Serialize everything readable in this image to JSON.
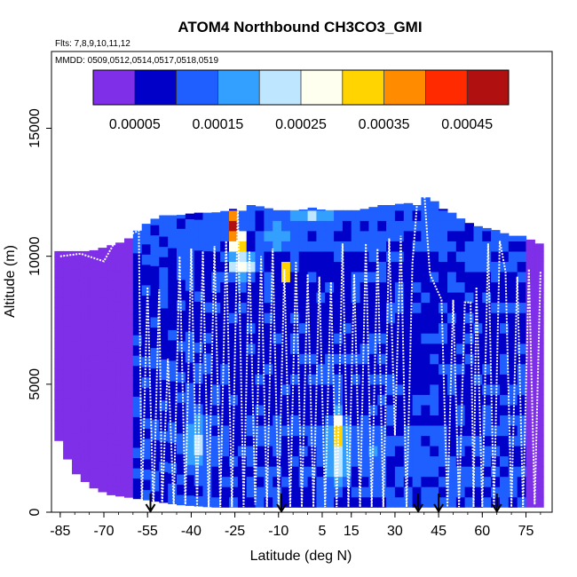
{
  "chart_data": {
    "type": "heatmap",
    "title": "ATOM4 Northbound CH3CO3_GMI",
    "flights_note": "Flts: 7,8,9,10,11,12",
    "dates_note": "MMDD: 0509,0512,0514,0517,0518,0519",
    "xlabel": "Latitude (deg N)",
    "ylabel": "Altitude (m)",
    "xlim": [
      -88,
      84
    ],
    "ylim": [
      0,
      18000
    ],
    "x_ticks": [
      -85,
      -70,
      -55,
      -40,
      -25,
      -10,
      5,
      15,
      30,
      45,
      60,
      75
    ],
    "x_tick_labels": [
      "-85",
      "-70",
      "-55",
      "-40",
      "-25",
      "-10",
      "5",
      "15",
      "30",
      "45",
      "60",
      "75"
    ],
    "y_ticks": [
      0,
      5000,
      10000,
      15000
    ],
    "y_tick_labels": [
      "0",
      "5000",
      "10000",
      "15000"
    ],
    "colorbar": {
      "range": [
        0,
        0.0005
      ],
      "tick_values": [
        5e-05,
        0.00015,
        0.00025,
        0.00035,
        0.00045
      ],
      "tick_labels": [
        "0.00005",
        "0.00015",
        "0.00025",
        "0.00035",
        "0.00045"
      ],
      "colors": [
        "#7f2fe8",
        "#0000c8",
        "#1f5fff",
        "#33a0ff",
        "#bfe6ff",
        "#fffff0",
        "#ffd400",
        "#ff8c00",
        "#ff2a00",
        "#b01010"
      ]
    },
    "top_envelope": [
      [
        -87,
        10200
      ],
      [
        -82,
        10200
      ],
      [
        -76,
        10200
      ],
      [
        -70,
        10400
      ],
      [
        -64,
        10600
      ],
      [
        -58,
        11200
      ],
      [
        -52,
        11600
      ],
      [
        -46,
        11600
      ],
      [
        -40,
        11700
      ],
      [
        -34,
        11700
      ],
      [
        -28,
        11800
      ],
      [
        -24,
        12000
      ],
      [
        -20,
        12000
      ],
      [
        -16,
        11900
      ],
      [
        -12,
        11800
      ],
      [
        -8,
        11800
      ],
      [
        -4,
        11800
      ],
      [
        0,
        11900
      ],
      [
        4,
        11800
      ],
      [
        8,
        11800
      ],
      [
        12,
        11800
      ],
      [
        16,
        11800
      ],
      [
        20,
        11900
      ],
      [
        24,
        12000
      ],
      [
        28,
        12000
      ],
      [
        32,
        12100
      ],
      [
        36,
        12000
      ],
      [
        40,
        12400
      ],
      [
        44,
        11900
      ],
      [
        48,
        11700
      ],
      [
        52,
        11400
      ],
      [
        56,
        11200
      ],
      [
        60,
        11100
      ],
      [
        64,
        11000
      ],
      [
        68,
        10800
      ],
      [
        72,
        10800
      ],
      [
        76,
        10600
      ],
      [
        80,
        10400
      ]
    ],
    "bottom_envelope": [
      [
        -87,
        2800
      ],
      [
        -82,
        1600
      ],
      [
        -76,
        1000
      ],
      [
        -70,
        700
      ],
      [
        -64,
        600
      ],
      [
        -58,
        500
      ],
      [
        -52,
        400
      ],
      [
        -46,
        300
      ],
      [
        -40,
        250
      ],
      [
        -34,
        200
      ],
      [
        -28,
        200
      ],
      [
        -24,
        200
      ],
      [
        -20,
        200
      ],
      [
        -16,
        200
      ],
      [
        -12,
        200
      ],
      [
        -8,
        200
      ],
      [
        -4,
        200
      ],
      [
        0,
        200
      ],
      [
        4,
        200
      ],
      [
        8,
        200
      ],
      [
        12,
        200
      ],
      [
        16,
        200
      ],
      [
        20,
        200
      ],
      [
        24,
        200
      ],
      [
        28,
        200
      ],
      [
        32,
        200
      ],
      [
        36,
        200
      ],
      [
        40,
        200
      ],
      [
        44,
        200
      ],
      [
        48,
        200
      ],
      [
        52,
        200
      ],
      [
        56,
        200
      ],
      [
        60,
        200
      ],
      [
        64,
        200
      ],
      [
        68,
        200
      ],
      [
        72,
        200
      ],
      [
        76,
        200
      ],
      [
        80,
        200
      ]
    ],
    "hotspots": [
      {
        "lat": -27,
        "alt": 11000,
        "value": 0.00045,
        "dlat": 3,
        "dalt": 700
      },
      {
        "lat": -25,
        "alt": 10300,
        "value": 0.00035,
        "dlat": 4,
        "dalt": 600
      },
      {
        "lat": -24,
        "alt": 9500,
        "value": 0.00028,
        "dlat": 5,
        "dalt": 700
      },
      {
        "lat": -23,
        "alt": 11900,
        "value": 0.00032,
        "dlat": 2,
        "dalt": 300
      },
      {
        "lat": -9,
        "alt": 9200,
        "value": 0.0004,
        "dlat": 2,
        "dalt": 400
      },
      {
        "lat": 9,
        "alt": 2900,
        "value": 0.00035,
        "dlat": 3,
        "dalt": 1000
      },
      {
        "lat": 9,
        "alt": 2200,
        "value": 0.00024,
        "dlat": 5,
        "dalt": 1800
      },
      {
        "lat": -40,
        "alt": 2500,
        "value": 0.00022,
        "dlat": 5,
        "dalt": 1500
      },
      {
        "lat": 20,
        "alt": 2200,
        "value": 0.00016,
        "dlat": 6,
        "dalt": 1400
      },
      {
        "lat": 36,
        "alt": 1800,
        "value": 0.00014,
        "dlat": 6,
        "dalt": 1200
      },
      {
        "lat": -12,
        "alt": 10600,
        "value": 0.00018,
        "dlat": 8,
        "dalt": 800
      },
      {
        "lat": 0,
        "alt": 11400,
        "value": 0.0002,
        "dlat": 12,
        "dalt": 600
      }
    ],
    "flight_track": [
      [
        -85,
        10000
      ],
      [
        -78,
        10100
      ],
      [
        -70,
        9800
      ],
      [
        -66,
        10600
      ],
      [
        -58,
        11000
      ],
      [
        -57,
        100
      ],
      [
        -55,
        8800
      ],
      [
        -53,
        100
      ],
      [
        -51,
        8700
      ],
      [
        -50,
        200
      ],
      [
        -48,
        6000
      ],
      [
        -46,
        200
      ],
      [
        -44,
        10000
      ],
      [
        -42,
        300
      ],
      [
        -40,
        10300
      ],
      [
        -38,
        200
      ],
      [
        -36,
        10200
      ],
      [
        -34,
        200
      ],
      [
        -32,
        10400
      ],
      [
        -30,
        200
      ],
      [
        -28,
        10600
      ],
      [
        -26,
        200
      ],
      [
        -24,
        11900
      ],
      [
        -22,
        200
      ],
      [
        -20,
        10200
      ],
      [
        -18,
        300
      ],
      [
        -16,
        10000
      ],
      [
        -14,
        200
      ],
      [
        -12,
        10300
      ],
      [
        -10,
        200
      ],
      [
        -8,
        9500
      ],
      [
        -6,
        200
      ],
      [
        -4,
        9800
      ],
      [
        -2,
        200
      ],
      [
        0,
        9300
      ],
      [
        2,
        200
      ],
      [
        4,
        9200
      ],
      [
        6,
        200
      ],
      [
        8,
        9000
      ],
      [
        10,
        200
      ],
      [
        12,
        10500
      ],
      [
        14,
        200
      ],
      [
        16,
        9300
      ],
      [
        18,
        200
      ],
      [
        20,
        10500
      ],
      [
        22,
        200
      ],
      [
        24,
        10300
      ],
      [
        26,
        200
      ],
      [
        28,
        10700
      ],
      [
        30,
        3000
      ],
      [
        32,
        10800
      ],
      [
        34,
        200
      ],
      [
        36,
        9700
      ],
      [
        38,
        12700
      ],
      [
        40,
        12600
      ],
      [
        42,
        9300
      ],
      [
        44,
        8800
      ],
      [
        46,
        8300
      ],
      [
        48,
        200
      ],
      [
        50,
        8300
      ],
      [
        52,
        200
      ],
      [
        54,
        8200
      ],
      [
        56,
        8200
      ],
      [
        57,
        200
      ],
      [
        58,
        8800
      ],
      [
        60,
        200
      ],
      [
        62,
        10500
      ],
      [
        64,
        200
      ],
      [
        66,
        10600
      ],
      [
        68,
        9400
      ],
      [
        70,
        200
      ],
      [
        72,
        9200
      ],
      [
        74,
        200
      ],
      [
        76,
        9500
      ],
      [
        78,
        300
      ],
      [
        80,
        9400
      ]
    ],
    "arrows_lat": [
      -54,
      -9,
      38,
      45,
      65
    ]
  }
}
